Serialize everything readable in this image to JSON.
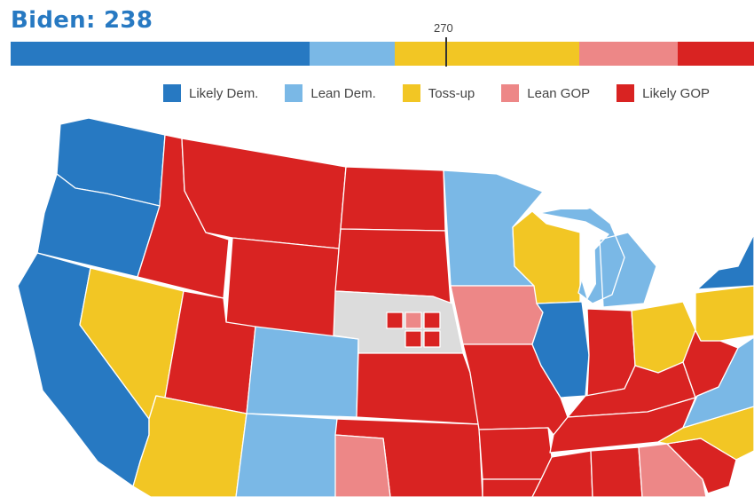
{
  "header": {
    "title": "Biden: 238",
    "marker_label": "270"
  },
  "bar": {
    "segments": [
      {
        "category": "Likely Dem.",
        "color": "#2779c2",
        "fraction": 0.402
      },
      {
        "category": "Lean Dem.",
        "color": "#7ab8e6",
        "fraction": 0.115
      },
      {
        "category": "Toss-up",
        "color": "#f2c624",
        "fraction": 0.248
      },
      {
        "category": "Lean GOP",
        "color": "#ed8787",
        "fraction": 0.132
      },
      {
        "category": "Likely GOP",
        "color": "#d92322",
        "fraction": 0.103
      }
    ]
  },
  "legend": [
    {
      "label": "Likely Dem.",
      "color": "#2779c2"
    },
    {
      "label": "Lean Dem.",
      "color": "#7ab8e6"
    },
    {
      "label": "Toss-up",
      "color": "#f2c624"
    },
    {
      "label": "Lean GOP",
      "color": "#ed8787"
    },
    {
      "label": "Likely GOP",
      "color": "#d92322"
    }
  ],
  "colors": {
    "likely_dem": "#2779c2",
    "lean_dem": "#7ab8e6",
    "tossup": "#f2c624",
    "lean_gop": "#ed8787",
    "likely_gop": "#d92322",
    "no_rating": "#dcdcdc",
    "water": "#ffffff"
  },
  "map": {
    "states": [
      {
        "id": "WA",
        "rating": "likely_dem"
      },
      {
        "id": "OR",
        "rating": "likely_dem"
      },
      {
        "id": "CA",
        "rating": "likely_dem"
      },
      {
        "id": "NV",
        "rating": "tossup"
      },
      {
        "id": "ID",
        "rating": "likely_gop"
      },
      {
        "id": "MT",
        "rating": "likely_gop"
      },
      {
        "id": "WY",
        "rating": "likely_gop"
      },
      {
        "id": "UT",
        "rating": "likely_gop"
      },
      {
        "id": "AZ",
        "rating": "tossup"
      },
      {
        "id": "CO",
        "rating": "lean_dem"
      },
      {
        "id": "NM",
        "rating": "lean_dem"
      },
      {
        "id": "ND",
        "rating": "likely_gop"
      },
      {
        "id": "SD",
        "rating": "likely_gop"
      },
      {
        "id": "NE",
        "rating": "no_rating"
      },
      {
        "id": "KS",
        "rating": "likely_gop"
      },
      {
        "id": "OK",
        "rating": "likely_gop"
      },
      {
        "id": "TX",
        "rating": "lean_gop"
      },
      {
        "id": "MN",
        "rating": "lean_dem"
      },
      {
        "id": "IA",
        "rating": "lean_gop"
      },
      {
        "id": "MO",
        "rating": "likely_gop"
      },
      {
        "id": "AR",
        "rating": "likely_gop"
      },
      {
        "id": "LA",
        "rating": "likely_gop"
      },
      {
        "id": "WI",
        "rating": "tossup"
      },
      {
        "id": "MI",
        "rating": "lean_dem"
      },
      {
        "id": "IL",
        "rating": "likely_dem"
      },
      {
        "id": "IN",
        "rating": "likely_gop"
      },
      {
        "id": "OH",
        "rating": "tossup"
      },
      {
        "id": "KY",
        "rating": "likely_gop"
      },
      {
        "id": "TN",
        "rating": "likely_gop"
      },
      {
        "id": "MS",
        "rating": "likely_gop"
      },
      {
        "id": "AL",
        "rating": "likely_gop"
      },
      {
        "id": "GA",
        "rating": "lean_gop"
      },
      {
        "id": "SC",
        "rating": "likely_gop"
      },
      {
        "id": "NC",
        "rating": "tossup"
      },
      {
        "id": "VA",
        "rating": "lean_dem"
      },
      {
        "id": "WV",
        "rating": "likely_gop"
      },
      {
        "id": "PA",
        "rating": "tossup"
      },
      {
        "id": "NY",
        "rating": "likely_dem"
      }
    ],
    "nebraska_districts": [
      {
        "id": "NE-1",
        "rating": "likely_gop"
      },
      {
        "id": "NE-2",
        "rating": "lean_gop"
      },
      {
        "id": "NE-3",
        "rating": "likely_gop"
      },
      {
        "id": "NE-AL1",
        "rating": "likely_gop"
      },
      {
        "id": "NE-AL2",
        "rating": "likely_gop"
      }
    ]
  }
}
